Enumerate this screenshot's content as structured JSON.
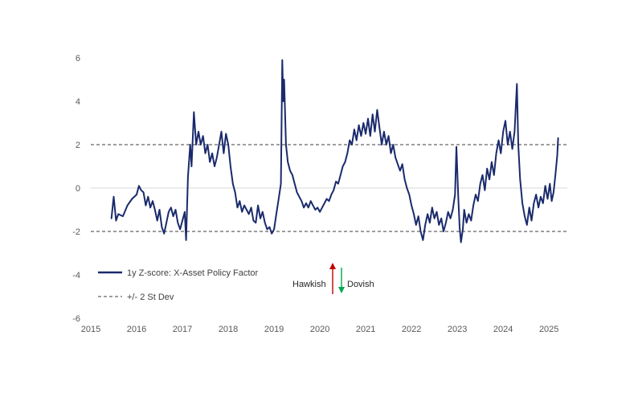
{
  "chart_data": {
    "type": "line",
    "title": "",
    "xlabel": "",
    "ylabel": "",
    "x_tick_labels": [
      "2015",
      "2016",
      "2017",
      "2018",
      "2019",
      "2020",
      "2021",
      "2022",
      "2023",
      "2024",
      "2025"
    ],
    "y_tick_labels": [
      "6",
      "4",
      "2",
      "0",
      "-2",
      "-4",
      "-6"
    ],
    "xlim": [
      2015.0,
      2025.4
    ],
    "ylim": [
      -6,
      6
    ],
    "grid": "horizontal zero line only",
    "series": [
      {
        "name": "1y Z-score: X-Asset Policy Factor",
        "color": "#1a2a6c",
        "style": "solid",
        "points": [
          [
            2015.45,
            -1.4
          ],
          [
            2015.5,
            -0.4
          ],
          [
            2015.55,
            -1.5
          ],
          [
            2015.6,
            -1.2
          ],
          [
            2015.7,
            -1.3
          ],
          [
            2015.8,
            -0.8
          ],
          [
            2015.9,
            -0.5
          ],
          [
            2016.0,
            -0.3
          ],
          [
            2016.05,
            0.1
          ],
          [
            2016.1,
            -0.1
          ],
          [
            2016.15,
            -0.2
          ],
          [
            2016.2,
            -0.8
          ],
          [
            2016.25,
            -0.4
          ],
          [
            2016.3,
            -0.9
          ],
          [
            2016.35,
            -0.6
          ],
          [
            2016.4,
            -1.0
          ],
          [
            2016.45,
            -1.5
          ],
          [
            2016.5,
            -1.0
          ],
          [
            2016.55,
            -1.8
          ],
          [
            2016.6,
            -2.1
          ],
          [
            2016.65,
            -1.6
          ],
          [
            2016.7,
            -1.1
          ],
          [
            2016.75,
            -0.9
          ],
          [
            2016.8,
            -1.3
          ],
          [
            2016.85,
            -1.0
          ],
          [
            2016.9,
            -1.6
          ],
          [
            2016.95,
            -1.9
          ],
          [
            2017.0,
            -1.5
          ],
          [
            2017.05,
            -1.1
          ],
          [
            2017.08,
            -2.4
          ],
          [
            2017.12,
            0.5
          ],
          [
            2017.17,
            2.0
          ],
          [
            2017.2,
            1.0
          ],
          [
            2017.25,
            3.5
          ],
          [
            2017.3,
            2.0
          ],
          [
            2017.35,
            2.6
          ],
          [
            2017.4,
            2.0
          ],
          [
            2017.45,
            2.4
          ],
          [
            2017.5,
            1.6
          ],
          [
            2017.55,
            2.0
          ],
          [
            2017.6,
            1.2
          ],
          [
            2017.65,
            1.6
          ],
          [
            2017.7,
            1.0
          ],
          [
            2017.75,
            1.4
          ],
          [
            2017.8,
            2.0
          ],
          [
            2017.85,
            2.6
          ],
          [
            2017.9,
            1.6
          ],
          [
            2017.95,
            2.5
          ],
          [
            2018.0,
            2.0
          ],
          [
            2018.05,
            1.0
          ],
          [
            2018.1,
            0.2
          ],
          [
            2018.15,
            -0.2
          ],
          [
            2018.2,
            -0.9
          ],
          [
            2018.25,
            -0.6
          ],
          [
            2018.3,
            -1.1
          ],
          [
            2018.35,
            -0.8
          ],
          [
            2018.4,
            -1.0
          ],
          [
            2018.45,
            -1.2
          ],
          [
            2018.5,
            -0.9
          ],
          [
            2018.55,
            -1.5
          ],
          [
            2018.6,
            -1.6
          ],
          [
            2018.65,
            -0.8
          ],
          [
            2018.7,
            -1.4
          ],
          [
            2018.75,
            -1.1
          ],
          [
            2018.8,
            -1.6
          ],
          [
            2018.85,
            -1.9
          ],
          [
            2018.9,
            -1.8
          ],
          [
            2018.95,
            -2.1
          ],
          [
            2019.0,
            -1.9
          ],
          [
            2019.05,
            -1.2
          ],
          [
            2019.1,
            -0.5
          ],
          [
            2019.15,
            0.2
          ],
          [
            2019.18,
            5.9
          ],
          [
            2019.2,
            4.0
          ],
          [
            2019.22,
            5.0
          ],
          [
            2019.26,
            2.0
          ],
          [
            2019.3,
            1.2
          ],
          [
            2019.35,
            0.8
          ],
          [
            2019.4,
            0.6
          ],
          [
            2019.45,
            0.2
          ],
          [
            2019.5,
            -0.2
          ],
          [
            2019.55,
            -0.4
          ],
          [
            2019.6,
            -0.6
          ],
          [
            2019.65,
            -0.9
          ],
          [
            2019.7,
            -0.7
          ],
          [
            2019.75,
            -0.9
          ],
          [
            2019.8,
            -0.6
          ],
          [
            2019.85,
            -0.8
          ],
          [
            2019.9,
            -1.0
          ],
          [
            2019.95,
            -0.9
          ],
          [
            2020.0,
            -1.1
          ],
          [
            2020.05,
            -0.9
          ],
          [
            2020.1,
            -0.7
          ],
          [
            2020.15,
            -0.5
          ],
          [
            2020.2,
            -0.6
          ],
          [
            2020.25,
            -0.3
          ],
          [
            2020.3,
            -0.1
          ],
          [
            2020.35,
            0.3
          ],
          [
            2020.4,
            0.2
          ],
          [
            2020.45,
            0.6
          ],
          [
            2020.5,
            1.0
          ],
          [
            2020.55,
            1.2
          ],
          [
            2020.6,
            1.6
          ],
          [
            2020.65,
            2.2
          ],
          [
            2020.7,
            2.0
          ],
          [
            2020.75,
            2.7
          ],
          [
            2020.8,
            2.2
          ],
          [
            2020.85,
            2.9
          ],
          [
            2020.9,
            2.4
          ],
          [
            2020.95,
            3.0
          ],
          [
            2021.0,
            2.5
          ],
          [
            2021.05,
            3.2
          ],
          [
            2021.1,
            2.4
          ],
          [
            2021.15,
            3.4
          ],
          [
            2021.2,
            2.6
          ],
          [
            2021.25,
            3.6
          ],
          [
            2021.3,
            2.8
          ],
          [
            2021.35,
            2.0
          ],
          [
            2021.4,
            2.6
          ],
          [
            2021.45,
            2.0
          ],
          [
            2021.5,
            2.4
          ],
          [
            2021.55,
            1.6
          ],
          [
            2021.6,
            2.0
          ],
          [
            2021.65,
            1.4
          ],
          [
            2021.7,
            1.1
          ],
          [
            2021.75,
            0.8
          ],
          [
            2021.8,
            1.1
          ],
          [
            2021.85,
            0.4
          ],
          [
            2021.9,
            0.0
          ],
          [
            2021.95,
            -0.3
          ],
          [
            2022.0,
            -0.8
          ],
          [
            2022.05,
            -1.2
          ],
          [
            2022.1,
            -1.7
          ],
          [
            2022.15,
            -1.3
          ],
          [
            2022.2,
            -2.0
          ],
          [
            2022.25,
            -2.4
          ],
          [
            2022.3,
            -1.7
          ],
          [
            2022.35,
            -1.2
          ],
          [
            2022.4,
            -1.6
          ],
          [
            2022.45,
            -0.9
          ],
          [
            2022.5,
            -1.4
          ],
          [
            2022.55,
            -1.1
          ],
          [
            2022.6,
            -1.7
          ],
          [
            2022.65,
            -1.4
          ],
          [
            2022.7,
            -2.0
          ],
          [
            2022.75,
            -1.6
          ],
          [
            2022.8,
            -1.1
          ],
          [
            2022.85,
            -1.4
          ],
          [
            2022.9,
            -1.0
          ],
          [
            2022.95,
            -0.3
          ],
          [
            2022.98,
            1.9
          ],
          [
            2023.02,
            -0.4
          ],
          [
            2023.05,
            -1.8
          ],
          [
            2023.08,
            -2.5
          ],
          [
            2023.12,
            -1.9
          ],
          [
            2023.15,
            -1.0
          ],
          [
            2023.2,
            -1.6
          ],
          [
            2023.25,
            -1.2
          ],
          [
            2023.3,
            -1.5
          ],
          [
            2023.35,
            -0.8
          ],
          [
            2023.4,
            -0.3
          ],
          [
            2023.45,
            -0.6
          ],
          [
            2023.5,
            0.2
          ],
          [
            2023.55,
            0.6
          ],
          [
            2023.6,
            -0.1
          ],
          [
            2023.65,
            0.9
          ],
          [
            2023.7,
            0.4
          ],
          [
            2023.75,
            1.2
          ],
          [
            2023.8,
            0.6
          ],
          [
            2023.85,
            1.6
          ],
          [
            2023.9,
            2.2
          ],
          [
            2023.95,
            1.6
          ],
          [
            2024.0,
            2.6
          ],
          [
            2024.05,
            3.1
          ],
          [
            2024.1,
            2.0
          ],
          [
            2024.15,
            2.6
          ],
          [
            2024.2,
            1.8
          ],
          [
            2024.25,
            2.6
          ],
          [
            2024.3,
            4.8
          ],
          [
            2024.33,
            2.0
          ],
          [
            2024.37,
            0.4
          ],
          [
            2024.42,
            -0.7
          ],
          [
            2024.47,
            -1.3
          ],
          [
            2024.52,
            -1.7
          ],
          [
            2024.57,
            -0.9
          ],
          [
            2024.62,
            -1.5
          ],
          [
            2024.67,
            -0.7
          ],
          [
            2024.72,
            -0.3
          ],
          [
            2024.77,
            -0.9
          ],
          [
            2024.82,
            -0.4
          ],
          [
            2024.87,
            -0.7
          ],
          [
            2024.92,
            0.1
          ],
          [
            2024.97,
            -0.5
          ],
          [
            2025.02,
            0.2
          ],
          [
            2025.06,
            -0.6
          ],
          [
            2025.1,
            -0.2
          ],
          [
            2025.14,
            0.6
          ],
          [
            2025.18,
            1.5
          ],
          [
            2025.2,
            2.3
          ]
        ]
      },
      {
        "name": "+/- 2 St Dev",
        "color": "#7f7f7f",
        "style": "dashed",
        "lines_at": [
          2,
          -2
        ]
      }
    ],
    "legend": {
      "placement": "bottom-left inside plot",
      "entries": [
        "1y Z-score: X-Asset Policy Factor",
        "+/- 2 St Dev"
      ]
    },
    "annotations": [
      {
        "text": "Hawkish",
        "arrow": "up",
        "arrow_color": "#c00000"
      },
      {
        "text": "Dovish",
        "arrow": "down",
        "arrow_color": "#00a651"
      }
    ]
  }
}
